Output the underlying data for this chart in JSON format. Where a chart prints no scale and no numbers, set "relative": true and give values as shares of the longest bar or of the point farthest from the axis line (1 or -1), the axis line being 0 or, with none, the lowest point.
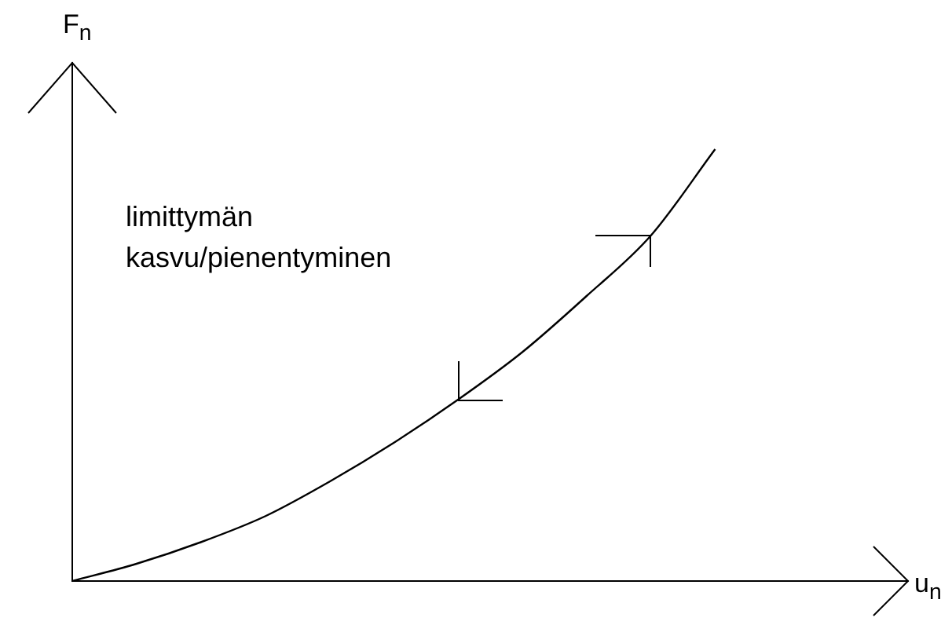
{
  "chart_data": {
    "type": "line",
    "relative": true,
    "xlabel": "u$_{n}$",
    "ylabel": "F$_{n}$",
    "annotations": [
      "limittymän kasvu/pienentyminen"
    ],
    "categories": [
      null,
      null,
      null,
      null,
      null,
      null,
      null,
      null,
      null,
      null,
      null,
      null,
      null,
      null
    ],
    "series": [
      {
        "color": "#000000",
        "values": [
          0,
          0.04,
          0.09,
          0.15,
          0.23,
          0.32,
          0.42,
          0.53,
          0.66,
          0.8,
          1,
          null,
          null,
          null
        ]
      }
    ],
    "grid": false,
    "legend": false,
    "marker": "none",
    "line_style": "solid"
  }
}
